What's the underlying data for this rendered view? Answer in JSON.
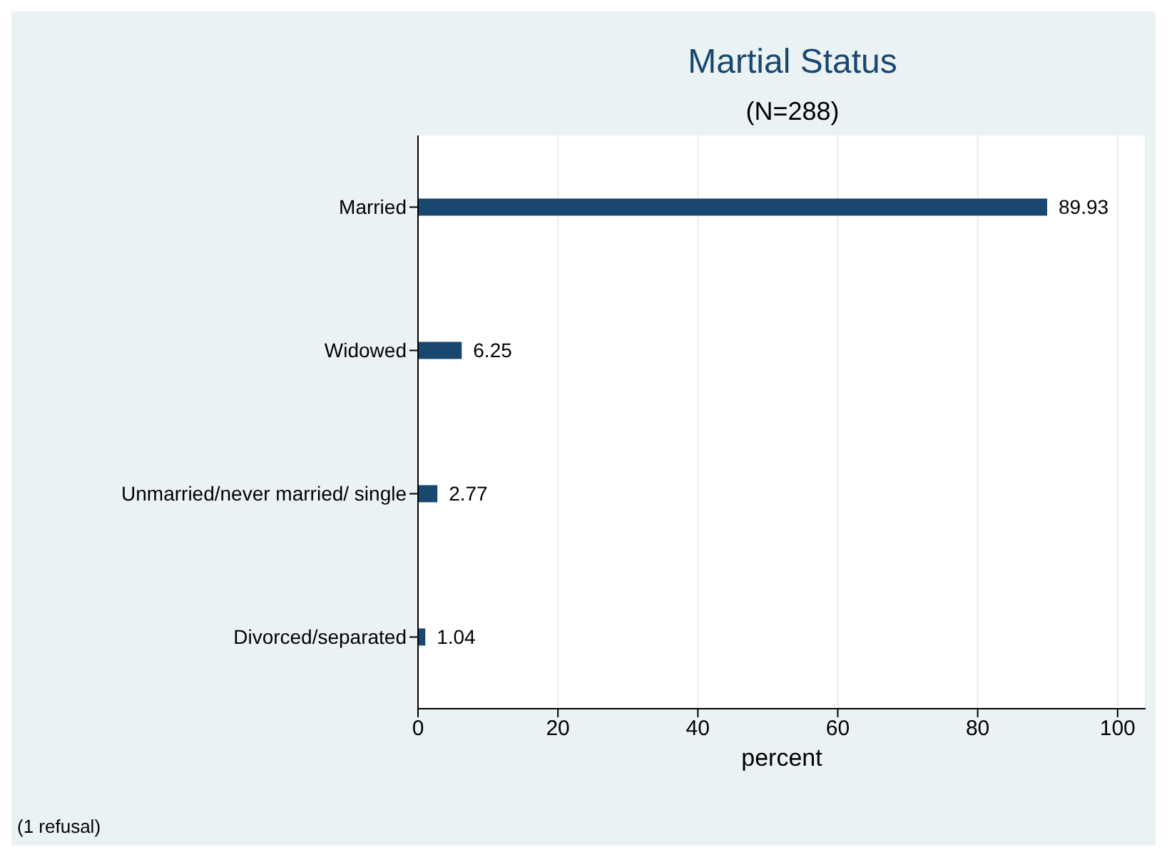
{
  "chart_data": {
    "type": "bar",
    "orientation": "horizontal",
    "title": "Martial Status",
    "subtitle": "(N=288)",
    "xlabel": "percent",
    "categories": [
      "Married",
      "Widowed",
      "Unmarried/never married/ single",
      "Divorced/separated"
    ],
    "values": [
      89.93,
      6.25,
      2.77,
      1.04
    ],
    "color": "#1a476f",
    "xlim": [
      0,
      104
    ],
    "xticks": [
      0,
      20,
      40,
      60,
      80,
      100
    ],
    "grid": "x",
    "data_labels": true,
    "annotations": [
      "(1 refusal)"
    ]
  }
}
